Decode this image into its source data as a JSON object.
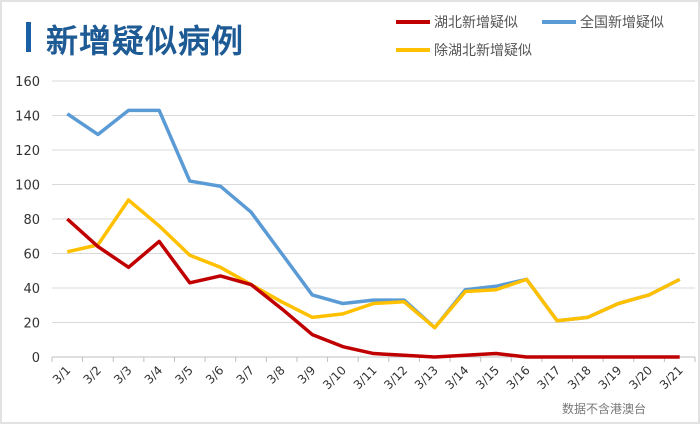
{
  "title": "新增疑似病例",
  "note": "数据不含港澳台",
  "chart_data": {
    "type": "line",
    "title": "新增疑似病例",
    "categories": [
      "3/1",
      "3/2",
      "3/3",
      "3/4",
      "3/5",
      "3/6",
      "3/7",
      "3/8",
      "3/9",
      "3/10",
      "3/11",
      "3/12",
      "3/13",
      "3/14",
      "3/15",
      "3/16",
      "3/17",
      "3/18",
      "3/19",
      "3/20",
      "3/21"
    ],
    "ylim": [
      0,
      160
    ],
    "yticks": [
      "0",
      "20",
      "40",
      "60",
      "80",
      "100",
      "120",
      "140",
      "160"
    ],
    "grid": true,
    "legend_placement": "top-right",
    "series": [
      {
        "name": "湖北新增疑似",
        "color": "#c00000",
        "values": [
          80,
          64,
          52,
          67,
          43,
          47,
          42,
          28,
          13,
          6,
          2,
          1,
          0,
          1,
          2,
          0,
          0,
          0,
          0,
          0,
          0
        ]
      },
      {
        "name": "全国新增疑似",
        "color": "#5b9bd5",
        "values": [
          141,
          129,
          143,
          143,
          102,
          99,
          84,
          60,
          36,
          31,
          33,
          33,
          17,
          39,
          41,
          45,
          21,
          23,
          31,
          36,
          45
        ]
      },
      {
        "name": "除湖北新增疑似",
        "color": "#ffc000",
        "values": [
          61,
          65,
          91,
          76,
          59,
          52,
          42,
          32,
          23,
          25,
          31,
          32,
          17,
          38,
          39,
          45,
          21,
          23,
          31,
          36,
          45
        ]
      }
    ]
  }
}
